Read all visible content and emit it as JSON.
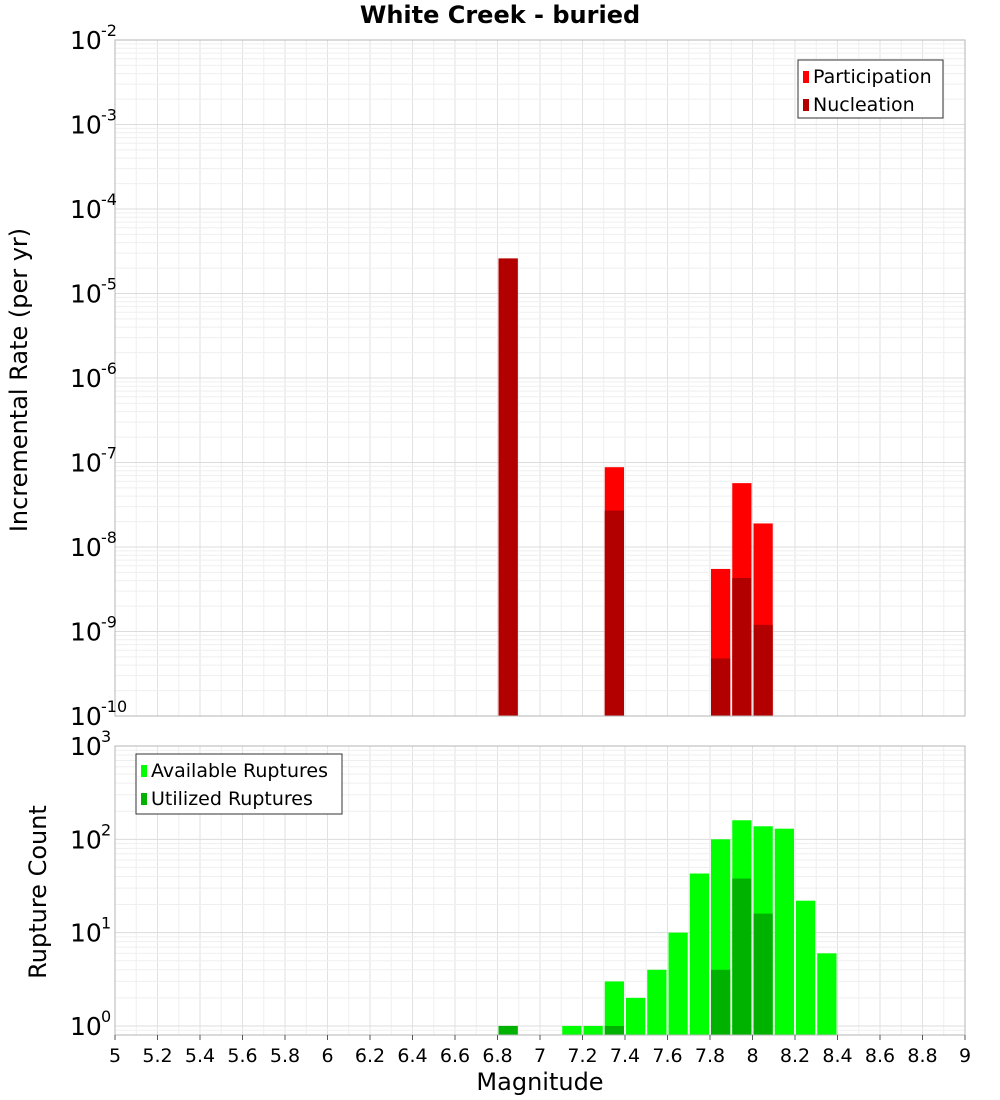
{
  "title": "White Creek - buried",
  "chart_data": [
    {
      "type": "bar",
      "ylabel": "Incremental Rate (per yr)",
      "yscale": "log",
      "ylim": [
        1e-10,
        0.01
      ],
      "xlim": [
        5,
        9
      ],
      "bar_width": 0.1,
      "grid": true,
      "legend_position": "top-right",
      "series": [
        {
          "name": "Participation",
          "color": "#ff0000",
          "points": [
            {
              "x": 6.85,
              "y": 2.6e-05
            },
            {
              "x": 7.35,
              "y": 8.8e-08
            },
            {
              "x": 7.85,
              "y": 5.5e-09
            },
            {
              "x": 7.95,
              "y": 5.7e-08
            },
            {
              "x": 8.05,
              "y": 1.9e-08
            }
          ]
        },
        {
          "name": "Nucleation",
          "color": "#b20000",
          "points": [
            {
              "x": 6.85,
              "y": 2.6e-05
            },
            {
              "x": 7.35,
              "y": 2.7e-08
            },
            {
              "x": 7.85,
              "y": 4.8e-10
            },
            {
              "x": 7.95,
              "y": 4.3e-09
            },
            {
              "x": 8.05,
              "y": 1.2e-09
            }
          ]
        }
      ]
    },
    {
      "type": "bar",
      "ylabel": "Rupture Count",
      "xlabel": "Magnitude",
      "yscale": "log",
      "ylim": [
        0.8,
        1000
      ],
      "xlim": [
        5,
        9
      ],
      "bar_width": 0.1,
      "grid": true,
      "legend_position": "top-left",
      "xticks": [
        "5",
        "5.2",
        "5.4",
        "5.6",
        "5.8",
        "6",
        "6.2",
        "6.4",
        "6.6",
        "6.8",
        "7",
        "7.2",
        "7.4",
        "7.6",
        "7.8",
        "8",
        "8.2",
        "8.4",
        "8.6",
        "8.8",
        "9"
      ],
      "series": [
        {
          "name": "Available Ruptures",
          "color": "#00ff00",
          "points": [
            {
              "x": 6.85,
              "y": 1
            },
            {
              "x": 7.15,
              "y": 1
            },
            {
              "x": 7.25,
              "y": 1
            },
            {
              "x": 7.35,
              "y": 3
            },
            {
              "x": 7.45,
              "y": 2
            },
            {
              "x": 7.55,
              "y": 4
            },
            {
              "x": 7.65,
              "y": 10
            },
            {
              "x": 7.75,
              "y": 43
            },
            {
              "x": 7.85,
              "y": 100
            },
            {
              "x": 7.95,
              "y": 160
            },
            {
              "x": 8.05,
              "y": 138
            },
            {
              "x": 8.15,
              "y": 130
            },
            {
              "x": 8.25,
              "y": 22
            },
            {
              "x": 8.35,
              "y": 6
            }
          ]
        },
        {
          "name": "Utilized Ruptures",
          "color": "#00b200",
          "points": [
            {
              "x": 6.85,
              "y": 1
            },
            {
              "x": 7.35,
              "y": 1
            },
            {
              "x": 7.85,
              "y": 4
            },
            {
              "x": 7.95,
              "y": 38
            },
            {
              "x": 8.05,
              "y": 16
            }
          ]
        }
      ]
    }
  ]
}
